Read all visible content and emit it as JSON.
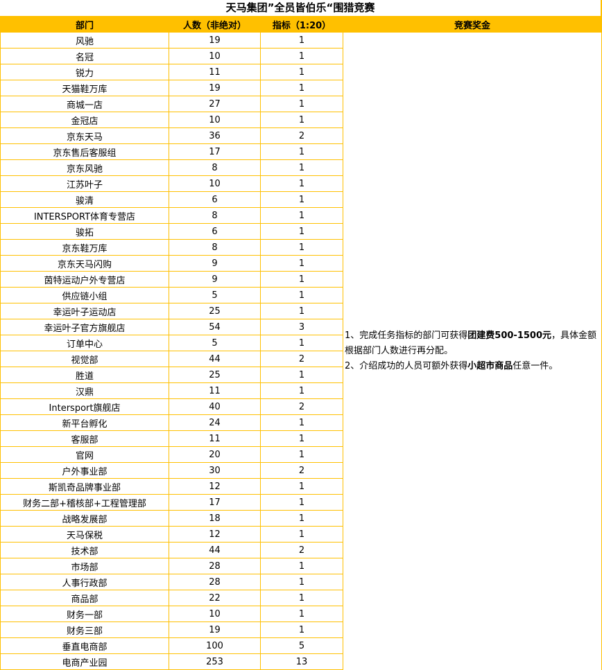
{
  "title": "天马集团”全员皆伯乐“围猎竞赛",
  "headers": [
    "部门",
    "人数（非绝对）",
    "指标（1:20）",
    "竞赛奖金"
  ],
  "accent_color": "#FFC000",
  "rows": [
    [
      "风驰",
      "19",
      "1"
    ],
    [
      "名冠",
      "10",
      "1"
    ],
    [
      "锐力",
      "11",
      "1"
    ],
    [
      "天猫鞋万库",
      "19",
      "1"
    ],
    [
      "商城一店",
      "27",
      "1"
    ],
    [
      "金冠店",
      "10",
      "1"
    ],
    [
      "京东天马",
      "36",
      "2"
    ],
    [
      "京东售后客服组",
      "17",
      "1"
    ],
    [
      "京东风驰",
      "8",
      "1"
    ],
    [
      "江苏叶子",
      "10",
      "1"
    ],
    [
      "骏清",
      "6",
      "1"
    ],
    [
      "INTERSPORT体育专营店",
      "8",
      "1"
    ],
    [
      "骏拓",
      "6",
      "1"
    ],
    [
      "京东鞋万库",
      "8",
      "1"
    ],
    [
      "京东天马闪购",
      "9",
      "1"
    ],
    [
      "茵特运动户外专营店",
      "9",
      "1"
    ],
    [
      "供应链小组",
      "5",
      "1"
    ],
    [
      "幸运叶子运动店",
      "25",
      "1"
    ],
    [
      "幸运叶子官方旗舰店",
      "54",
      "3"
    ],
    [
      "订单中心",
      "5",
      "1"
    ],
    [
      "视觉部",
      "44",
      "2"
    ],
    [
      "胜道",
      "25",
      "1"
    ],
    [
      "汉鼎",
      "11",
      "1"
    ],
    [
      "Intersport旗舰店",
      "40",
      "2"
    ],
    [
      "新平台孵化",
      "24",
      "1"
    ],
    [
      "客服部",
      "11",
      "1"
    ],
    [
      "官网",
      "20",
      "1"
    ],
    [
      "户外事业部",
      "30",
      "2"
    ],
    [
      "斯凯奇品牌事业部",
      "12",
      "1"
    ],
    [
      "财务二部+稽核部+工程管理部",
      "17",
      "1"
    ],
    [
      "战略发展部",
      "18",
      "1"
    ],
    [
      "天马保税",
      "12",
      "1"
    ],
    [
      "技术部",
      "44",
      "2"
    ],
    [
      "市场部",
      "28",
      "1"
    ],
    [
      "人事行政部",
      "28",
      "1"
    ],
    [
      "商品部",
      "22",
      "1"
    ],
    [
      "财务一部",
      "10",
      "1"
    ],
    [
      "财务三部",
      "19",
      "1"
    ],
    [
      "垂直电商部",
      "100",
      "5"
    ],
    [
      "电商产业园",
      "253",
      "13"
    ]
  ],
  "prize": {
    "line1_a": "1、完成任务指标的部门可获得",
    "line1_bold": "团建费500-1500元",
    "line1_b": "，具体金额根据部门人数进行再分配。",
    "line2_a": "2、介绍成功的人员可额外获得",
    "line2_bold": "小超市商品",
    "line2_b": "任意一件。"
  }
}
